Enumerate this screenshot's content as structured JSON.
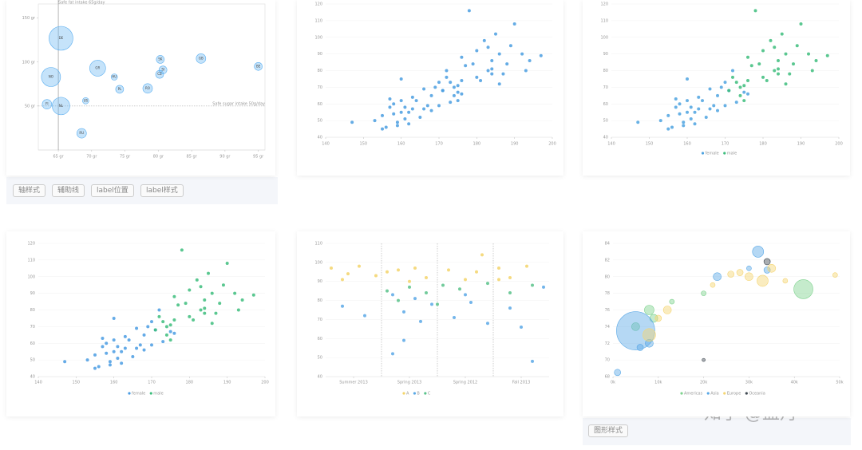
{
  "chart_data": [
    {
      "type": "bubble",
      "xlim": [
        62,
        96
      ],
      "ylim": [
        0,
        166
      ],
      "xticks": [
        {
          "value": 65,
          "label": "65 gr"
        },
        {
          "value": 70,
          "label": "70 gr"
        },
        {
          "value": 75,
          "label": "75 gr"
        },
        {
          "value": 80,
          "label": "80 gr"
        },
        {
          "value": 85,
          "label": "85 gr"
        },
        {
          "value": 90,
          "label": "90 gr"
        },
        {
          "value": 95,
          "label": "95 gr"
        }
      ],
      "yticks": [
        {
          "value": 50,
          "label": "50 gr"
        },
        {
          "value": 100,
          "label": "100 gr"
        },
        {
          "value": 150,
          "label": "150 gr"
        }
      ],
      "reference_lines": [
        {
          "axis": "x",
          "value": 65,
          "label": "Safe fat intake 65g/day"
        },
        {
          "axis": "y",
          "value": 50,
          "label": "Safe sugar intake 50g/day"
        }
      ],
      "series": [
        {
          "color": "#5aaef0",
          "labels": [
            "DE",
            "NO",
            "FI",
            "NL",
            "GR",
            "RU",
            "US",
            "HU",
            "PL",
            "RO",
            "SK",
            "SI",
            "CZ",
            "GB",
            "BE"
          ],
          "x": [
            65.4,
            63.9,
            63.3,
            65.4,
            70.9,
            68.5,
            69.1,
            73.4,
            74.2,
            78.4,
            80.3,
            80.7,
            80.2,
            86.4,
            95
          ],
          "y": [
            127,
            83,
            52,
            50,
            93,
            19,
            56,
            83,
            69,
            70,
            103,
            91,
            86,
            104,
            95
          ],
          "size": [
            15,
            12,
            6,
            11,
            10,
            6,
            4,
            4,
            5,
            6,
            5,
            5,
            5,
            6,
            5
          ]
        }
      ]
    },
    {
      "type": "scatter",
      "xlim": [
        140,
        200
      ],
      "ylim": [
        40,
        120
      ],
      "xticks": [
        140,
        150,
        160,
        170,
        180,
        190,
        200
      ],
      "yticks": [
        40,
        50,
        60,
        70,
        80,
        90,
        100,
        110,
        120
      ],
      "series": [
        {
          "color": "#4a9de0",
          "x": [
            161,
            167,
            159,
            157,
            155,
            170,
            159,
            166,
            176,
            160,
            162,
            166,
            155,
            163,
            160,
            165,
            158,
            168,
            173,
            163,
            153,
            170,
            147,
            161,
            172,
            162,
            175,
            158,
            164,
            168,
            156,
            169,
            157,
            171,
            160,
            174,
            175,
            193,
            186,
            187,
            181,
            184,
            184,
            175,
            184,
            180,
            177,
            192,
            176,
            183,
            174,
            189,
            178,
            185,
            190,
            172,
            182,
            179,
            194,
            171,
            188,
            180,
            176,
            186,
            197,
            173,
            183
          ],
          "y": [
            51,
            59,
            49,
            63,
            53,
            59,
            47,
            69,
            66,
            75,
            55,
            57,
            45,
            57,
            55,
            52,
            54,
            65,
            61,
            64,
            50,
            73,
            49,
            58,
            80,
            48,
            67,
            60,
            62,
            56,
            46,
            70,
            58,
            68,
            62,
            65,
            71,
            80,
            72,
            78,
            74,
            86,
            78,
            62,
            81,
            76,
            83,
            90,
            74,
            80,
            70,
            95,
            116,
            102,
            108,
            76,
            98,
            84,
            86,
            68,
            84,
            92,
            88,
            90,
            89,
            73,
            94
          ]
        }
      ]
    },
    {
      "type": "scatter",
      "xlim": [
        140,
        200
      ],
      "ylim": [
        40,
        120
      ],
      "xticks": [
        140,
        150,
        160,
        170,
        180,
        190,
        200
      ],
      "yticks": [
        40,
        50,
        60,
        70,
        80,
        90,
        100,
        110,
        120
      ],
      "series": [
        {
          "name": "female",
          "color": "#4ea3e0",
          "x": [
            161,
            167,
            159,
            157,
            155,
            170,
            159,
            166,
            176,
            160,
            162,
            166,
            155,
            163,
            160,
            165,
            158,
            168,
            173,
            163,
            153,
            170,
            147,
            161,
            172,
            162,
            175,
            158,
            164,
            168,
            156,
            169,
            157,
            171,
            160
          ],
          "y": [
            51,
            59,
            49,
            63,
            53,
            59,
            47,
            69,
            66,
            75,
            55,
            57,
            45,
            57,
            55,
            52,
            54,
            65,
            61,
            64,
            50,
            73,
            49,
            58,
            80,
            48,
            67,
            60,
            62,
            56,
            46,
            70,
            58,
            68,
            62
          ]
        },
        {
          "name": "male",
          "color": "#3dbd7d",
          "x": [
            174,
            175,
            193,
            186,
            187,
            181,
            184,
            184,
            175,
            184,
            180,
            177,
            192,
            176,
            183,
            174,
            189,
            178,
            185,
            190,
            172,
            182,
            179,
            194,
            171,
            188,
            180,
            176,
            186,
            197,
            173,
            183
          ],
          "y": [
            65,
            71,
            80,
            72,
            78,
            74,
            86,
            78,
            62,
            81,
            76,
            83,
            90,
            74,
            80,
            70,
            95,
            116,
            102,
            108,
            76,
            98,
            84,
            86,
            68,
            84,
            92,
            88,
            90,
            89,
            73,
            94
          ]
        }
      ]
    },
    {
      "type": "scatter",
      "xlim": [
        140,
        200
      ],
      "ylim": [
        40,
        120
      ],
      "xticks": [
        140,
        150,
        160,
        170,
        180,
        190,
        200
      ],
      "yticks": [
        40,
        50,
        60,
        70,
        80,
        90,
        100,
        110,
        120
      ],
      "series": [
        {
          "name": "female",
          "color": "#4a9ce3",
          "x": [
            161,
            167,
            159,
            157,
            155,
            170,
            159,
            166,
            176,
            160,
            162,
            166,
            155,
            163,
            160,
            165,
            158,
            168,
            173,
            163,
            153,
            170,
            147,
            161,
            172,
            162,
            175,
            158,
            164,
            168,
            156,
            169,
            157,
            171,
            160
          ],
          "y": [
            51,
            59,
            49,
            63,
            53,
            59,
            47,
            69,
            66,
            75,
            55,
            57,
            45,
            57,
            55,
            52,
            54,
            65,
            61,
            64,
            50,
            73,
            49,
            58,
            80,
            48,
            67,
            60,
            62,
            56,
            46,
            70,
            58,
            68,
            62
          ]
        },
        {
          "name": "male",
          "color": "#3dbd7d",
          "x": [
            174,
            175,
            193,
            186,
            187,
            181,
            184,
            184,
            175,
            184,
            180,
            177,
            192,
            176,
            183,
            174,
            189,
            178,
            185,
            190,
            172,
            182,
            179,
            194,
            171,
            188,
            180,
            176,
            186,
            197,
            173,
            183
          ],
          "y": [
            65,
            71,
            80,
            72,
            78,
            74,
            86,
            78,
            62,
            81,
            76,
            83,
            90,
            74,
            80,
            70,
            95,
            116,
            102,
            108,
            76,
            98,
            84,
            86,
            68,
            84,
            92,
            88,
            90,
            89,
            73,
            94
          ]
        }
      ]
    },
    {
      "type": "scatter",
      "xlim": [
        0,
        4
      ],
      "ylim": [
        40,
        110
      ],
      "xticks": [
        {
          "value": 0.5,
          "label": "Summer 2013"
        },
        {
          "value": 1.5,
          "label": "Spring 2013"
        },
        {
          "value": 2.5,
          "label": "Spring 2012"
        },
        {
          "value": 3.5,
          "label": "Fall 2013"
        }
      ],
      "yticks": [
        40,
        50,
        60,
        70,
        80,
        90,
        100,
        110
      ],
      "series": [
        {
          "name": "A",
          "color": "#f3d46a",
          "x": [
            0.1,
            0.3,
            0.6,
            0.9,
            1.1,
            1.3,
            1.5,
            1.8,
            2.2,
            2.5,
            2.7,
            3.1,
            3.3,
            3.6,
            3.1,
            0.4,
            1.6,
            2.8
          ],
          "y": [
            97,
            91,
            98,
            93,
            95,
            96,
            90,
            92,
            96,
            91,
            95,
            97,
            92,
            98,
            91,
            94,
            97,
            104
          ]
        },
        {
          "name": "B",
          "color": "#5aa8e6",
          "x": [
            0.3,
            0.7,
            1.2,
            1.4,
            1.7,
            1.9,
            2.3,
            2.6,
            2.9,
            3.3,
            3.5,
            3.7,
            1.2,
            1.4,
            1.6,
            2.5,
            3.9
          ],
          "y": [
            77,
            72,
            83,
            74,
            69,
            78,
            71,
            79,
            68,
            76,
            66,
            48,
            52,
            59,
            81,
            83,
            87
          ]
        },
        {
          "name": "C",
          "color": "#59c28a",
          "x": [
            1.1,
            1.5,
            1.8,
            2.1,
            2.4,
            2.9,
            3.3,
            3.7,
            1.3,
            2.0
          ],
          "y": [
            85,
            87,
            84,
            88,
            86,
            89,
            84,
            88,
            80,
            78
          ]
        }
      ]
    },
    {
      "type": "bubble",
      "xlim": [
        0,
        50000
      ],
      "ylim": [
        68,
        84
      ],
      "xticks": [
        {
          "value": 0,
          "label": "0k"
        },
        {
          "value": 10000,
          "label": "10k"
        },
        {
          "value": 20000,
          "label": "20k"
        },
        {
          "value": 30000,
          "label": "30k"
        },
        {
          "value": 40000,
          "label": "40k"
        },
        {
          "value": 50000,
          "label": "50k"
        }
      ],
      "yticks": [
        68,
        70,
        72,
        74,
        76,
        78,
        80,
        82,
        84
      ],
      "series": [
        {
          "name": "Americas",
          "color": "#7fd28f",
          "x": [
            42000,
            5000,
            8000,
            9000,
            13000,
            20000
          ],
          "y": [
            78.5,
            74,
            76,
            75,
            77,
            78
          ],
          "size": [
            12,
            5,
            6,
            5,
            3,
            3
          ]
        },
        {
          "name": "Asia",
          "color": "#5aa8e6",
          "x": [
            5000,
            1000,
            32000,
            30000,
            23000,
            8000,
            6000,
            34000
          ],
          "y": [
            73.5,
            68.5,
            83,
            81,
            80,
            72,
            71.5,
            80.8
          ],
          "size": [
            24,
            4,
            7,
            3,
            5,
            5,
            4,
            4
          ]
        },
        {
          "name": "Europe",
          "color": "#f5d572",
          "x": [
            30000,
            33000,
            26000,
            35000,
            8000,
            12000,
            22000,
            28000,
            49000,
            38000,
            10000
          ],
          "y": [
            80,
            79.5,
            80.3,
            81,
            73,
            76,
            79,
            80.5,
            80.2,
            79.5,
            75
          ],
          "size": [
            5,
            7,
            4,
            5,
            8,
            5,
            3,
            4,
            3,
            3,
            4
          ]
        },
        {
          "name": "Oceania",
          "color": "#404a52",
          "x": [
            34000,
            20000
          ],
          "y": [
            81.8,
            70
          ],
          "size": [
            4,
            2
          ]
        }
      ]
    }
  ],
  "buttons_top": [
    "轴样式",
    "辅助线",
    "label位置",
    "label样式"
  ],
  "buttons_bottom": [
    "图形样式"
  ],
  "watermark": "知乎 @盟丹"
}
